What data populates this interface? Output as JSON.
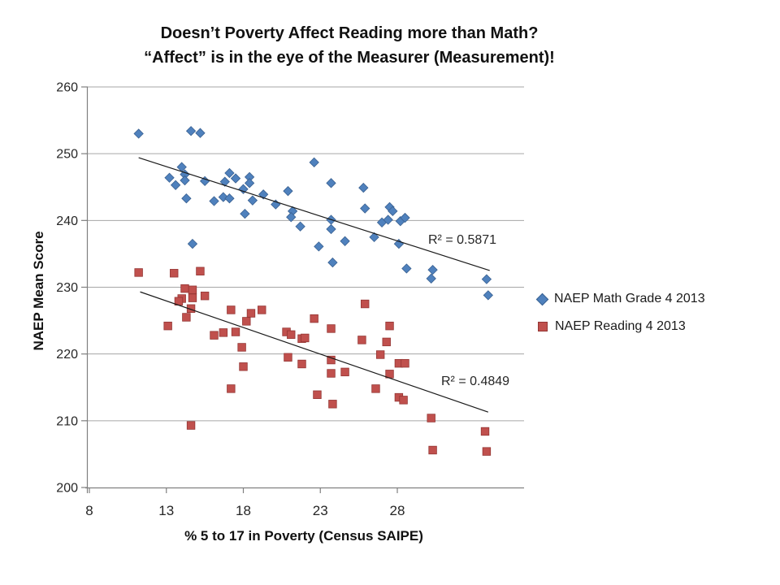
{
  "title": {
    "line1": "Doesn’t Poverty Affect Reading more than Math?",
    "line2": "“Affect” is in the eye of the Measurer (Measurement)!"
  },
  "annotations": {
    "math_r2_label": "R² = 0.5871",
    "reading_r2_label": "R² = 0.4849"
  },
  "chart_data": {
    "type": "scatter",
    "title": "Doesn’t Poverty Affect Reading more than Math? “Affect” is in the eye of the Measurer (Measurement)!",
    "xlabel": "% 5 to 17 in Poverty (Census SAIPE)",
    "ylabel": "NAEP Mean Score",
    "xlim": [
      8,
      36.5
    ],
    "ylim": [
      200,
      260
    ],
    "x_ticks": [
      8,
      13,
      18,
      23,
      28
    ],
    "y_ticks": [
      200,
      210,
      220,
      230,
      240,
      250,
      260
    ],
    "grid": "horizontal-only",
    "gridline_color": "#A6A6A6",
    "axis_color": "#808080",
    "trendline_color": "#1a1a1a",
    "legend_position": "right",
    "series": [
      {
        "name": "NAEP Math Grade 4 2013",
        "marker": "diamond",
        "color": "#4F81BD",
        "edge_color": "#3A6191",
        "r_squared": 0.5871,
        "trendline": {
          "x1": 11.2,
          "y1": 249.4,
          "x2": 34.0,
          "y2": 232.5
        },
        "points": [
          [
            11.2,
            253.0
          ],
          [
            14.6,
            253.4
          ],
          [
            15.2,
            253.1
          ],
          [
            14.0,
            248.0
          ],
          [
            13.2,
            246.4
          ],
          [
            13.6,
            245.3
          ],
          [
            14.2,
            246.9
          ],
          [
            14.2,
            246.0
          ],
          [
            14.3,
            243.3
          ],
          [
            15.5,
            245.9
          ],
          [
            16.1,
            242.9
          ],
          [
            16.7,
            243.5
          ],
          [
            16.8,
            245.8
          ],
          [
            17.1,
            247.1
          ],
          [
            17.1,
            243.3
          ],
          [
            17.5,
            246.3
          ],
          [
            18.0,
            244.7
          ],
          [
            18.4,
            246.5
          ],
          [
            18.4,
            245.6
          ],
          [
            18.1,
            241.0
          ],
          [
            18.6,
            243.0
          ],
          [
            19.3,
            243.9
          ],
          [
            20.1,
            242.4
          ],
          [
            20.9,
            244.4
          ],
          [
            21.2,
            241.4
          ],
          [
            21.1,
            240.5
          ],
          [
            21.7,
            239.1
          ],
          [
            14.7,
            236.5
          ],
          [
            22.6,
            248.7
          ],
          [
            23.7,
            245.6
          ],
          [
            25.8,
            244.9
          ],
          [
            25.9,
            241.8
          ],
          [
            27.5,
            242.0
          ],
          [
            27.7,
            241.4
          ],
          [
            27.0,
            239.7
          ],
          [
            27.4,
            240.1
          ],
          [
            28.2,
            239.9
          ],
          [
            28.5,
            240.4
          ],
          [
            23.7,
            240.1
          ],
          [
            23.7,
            238.7
          ],
          [
            22.9,
            236.1
          ],
          [
            24.6,
            236.9
          ],
          [
            26.5,
            237.5
          ],
          [
            28.1,
            236.5
          ],
          [
            23.8,
            233.7
          ],
          [
            28.6,
            232.8
          ],
          [
            30.3,
            232.6
          ],
          [
            30.2,
            231.3
          ],
          [
            33.8,
            231.2
          ],
          [
            33.9,
            228.8
          ]
        ]
      },
      {
        "name": "NAEP Reading 4 2013",
        "marker": "square",
        "color": "#C0504D",
        "edge_color": "#943634",
        "r_squared": 0.4849,
        "trendline": {
          "x1": 11.3,
          "y1": 229.3,
          "x2": 33.9,
          "y2": 211.3
        },
        "points": [
          [
            11.2,
            232.2
          ],
          [
            13.5,
            232.1
          ],
          [
            15.2,
            232.4
          ],
          [
            14.2,
            229.8
          ],
          [
            14.0,
            228.3
          ],
          [
            13.8,
            227.9
          ],
          [
            14.7,
            229.6
          ],
          [
            14.7,
            228.4
          ],
          [
            15.5,
            228.7
          ],
          [
            14.6,
            226.8
          ],
          [
            14.3,
            225.5
          ],
          [
            13.1,
            224.2
          ],
          [
            16.1,
            222.8
          ],
          [
            16.7,
            223.2
          ],
          [
            17.2,
            226.6
          ],
          [
            18.5,
            226.1
          ],
          [
            19.2,
            226.6
          ],
          [
            18.2,
            224.9
          ],
          [
            17.5,
            223.3
          ],
          [
            17.9,
            221.0
          ],
          [
            20.8,
            223.3
          ],
          [
            21.1,
            222.9
          ],
          [
            21.8,
            222.3
          ],
          [
            20.9,
            219.5
          ],
          [
            21.8,
            218.5
          ],
          [
            25.9,
            227.5
          ],
          [
            22.6,
            225.3
          ],
          [
            23.7,
            223.8
          ],
          [
            22.0,
            222.4
          ],
          [
            25.7,
            222.1
          ],
          [
            27.5,
            224.2
          ],
          [
            27.3,
            221.8
          ],
          [
            26.9,
            219.9
          ],
          [
            23.7,
            219.1
          ],
          [
            23.7,
            217.1
          ],
          [
            24.6,
            217.3
          ],
          [
            27.5,
            217.0
          ],
          [
            28.1,
            218.6
          ],
          [
            28.5,
            218.6
          ],
          [
            26.6,
            214.8
          ],
          [
            22.8,
            213.9
          ],
          [
            23.8,
            212.5
          ],
          [
            28.1,
            213.5
          ],
          [
            28.4,
            213.1
          ],
          [
            18.0,
            218.1
          ],
          [
            17.2,
            214.8
          ],
          [
            14.6,
            209.3
          ],
          [
            30.2,
            210.4
          ],
          [
            30.3,
            205.6
          ],
          [
            33.7,
            208.4
          ],
          [
            33.8,
            205.4
          ]
        ]
      }
    ]
  }
}
